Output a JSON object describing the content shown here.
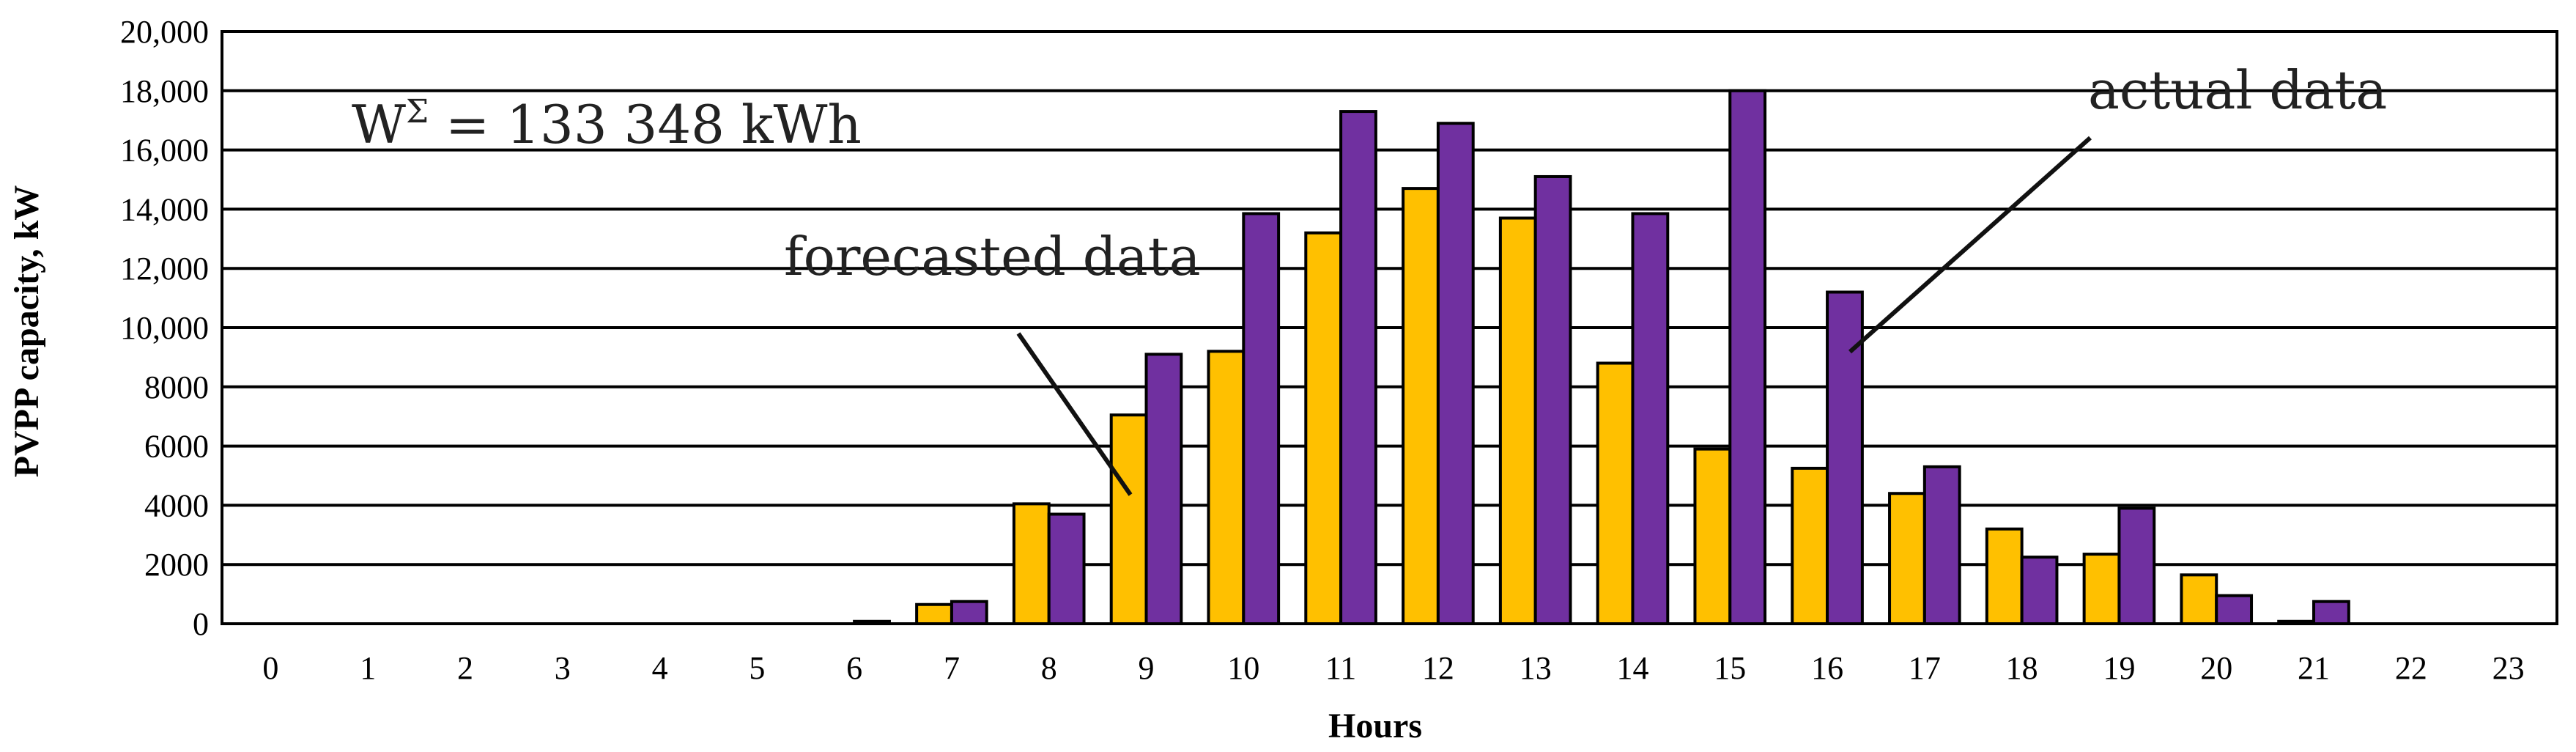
{
  "chart_data": {
    "type": "bar",
    "title": "",
    "xlabel": "Hours",
    "ylabel": "PVPP capacity, kW",
    "ylim": [
      0,
      20000
    ],
    "y_ticks": [
      0,
      2000,
      4000,
      6000,
      8000,
      10000,
      12000,
      14000,
      16000,
      18000,
      20000
    ],
    "y_tick_labels": [
      "0",
      "2000",
      "4000",
      "6000",
      "8000",
      "10,000",
      "12,000",
      "14,000",
      "16,000",
      "18,000",
      "20,000"
    ],
    "grid": true,
    "categories": [
      "0",
      "1",
      "2",
      "3",
      "4",
      "5",
      "6",
      "7",
      "8",
      "9",
      "10",
      "11",
      "12",
      "13",
      "14",
      "15",
      "16",
      "17",
      "18",
      "19",
      "20",
      "21",
      "22",
      "23"
    ],
    "series": [
      {
        "name": "forecasted data",
        "color": "#FFC000",
        "values": [
          0,
          0,
          0,
          0,
          0,
          0,
          0,
          650,
          4050,
          7050,
          9200,
          13200,
          14700,
          13700,
          8800,
          5900,
          5250,
          4400,
          3200,
          2350,
          1650,
          80,
          0,
          0
        ]
      },
      {
        "name": "actual data",
        "color": "#7030A0",
        "values": [
          0,
          0,
          0,
          0,
          0,
          0,
          80,
          750,
          3700,
          9100,
          13850,
          17300,
          16900,
          15100,
          13850,
          18000,
          11200,
          5300,
          2250,
          3900,
          950,
          750,
          0,
          0
        ]
      }
    ],
    "annotations": {
      "total_prefix": "W",
      "total_superscript": "Σ",
      "total_value": " = 133 348 kWh",
      "forecast_label": "forecasted data",
      "actual_label": "actual data"
    }
  }
}
